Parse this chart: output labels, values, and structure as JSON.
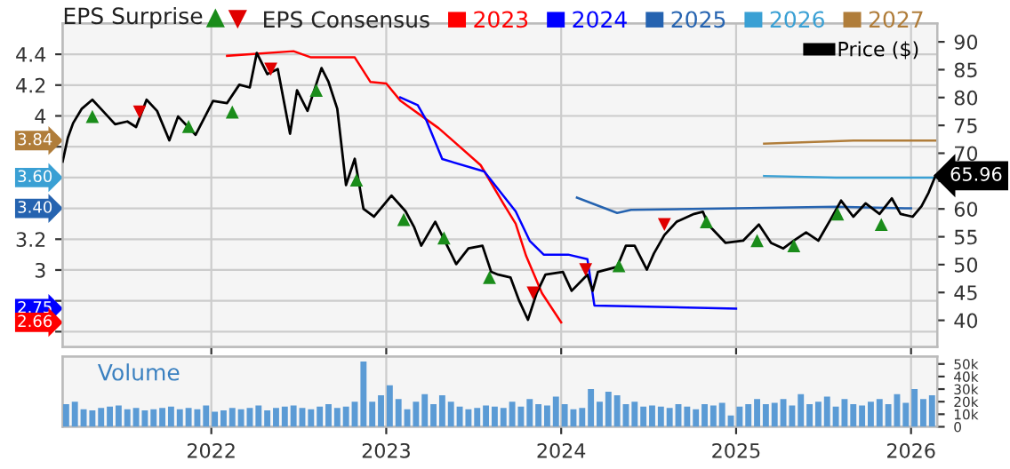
{
  "chart_data": [
    {
      "type": "line",
      "legend": "top",
      "legend_title": "EPS Consensus",
      "grid": true,
      "tick_labels": "y",
      "annotations": [
        "EPS Surprise",
        "3.84",
        "3.60",
        "3.40",
        "2.75",
        "2.66"
      ],
      "xlim": [
        2021.15,
        2026.15
      ],
      "xticks": [
        2022,
        2023,
        2024,
        2025,
        2026
      ],
      "ylim": [
        2.5,
        4.6
      ],
      "yticks": [
        {
          "value": 2.6,
          "label": null
        },
        {
          "value": 2.8,
          "label": null
        },
        3,
        3.2,
        {
          "value": 3.4,
          "label": null
        },
        {
          "value": 3.6,
          "label": null
        },
        {
          "value": 3.8,
          "label": null
        },
        4,
        4.2,
        4.4
      ],
      "y2lim": [
        35.2,
        93.3
      ],
      "y2ticks": [
        40,
        45,
        50,
        55,
        60,
        {
          "value": 65,
          "label": null
        },
        70,
        75,
        80,
        85,
        90
      ],
      "series": [
        {
          "name": "2023",
          "color": "#ff0000",
          "x": [
            2022.09,
            2022.47,
            2022.57,
            2022.82,
            2022.91,
            2023.0,
            2023.08,
            2023.3,
            2023.54,
            2023.67,
            2023.74,
            2023.8,
            2023.89,
            2024.0
          ],
          "values": [
            4.39,
            4.42,
            4.38,
            4.38,
            4.22,
            4.21,
            4.1,
            3.92,
            3.68,
            3.43,
            3.3,
            3.09,
            2.85,
            2.66
          ]
        },
        {
          "name": "2024",
          "color": "#0000ff",
          "x": [
            2023.08,
            2023.18,
            2023.23,
            2023.32,
            2023.56,
            2023.74,
            2023.82,
            2023.9,
            2024.04,
            2024.15,
            2024.19,
            2025.0
          ],
          "values": [
            4.12,
            4.07,
            3.97,
            3.72,
            3.64,
            3.38,
            3.19,
            3.1,
            3.1,
            3.07,
            2.77,
            2.75
          ]
        },
        {
          "name": "2025",
          "color": "#2563b0",
          "x": [
            2024.09,
            2024.32,
            2024.4,
            2025.0,
            2025.57,
            2026.0
          ],
          "values": [
            3.47,
            3.37,
            3.39,
            3.4,
            3.41,
            3.4
          ]
        },
        {
          "name": "2026",
          "color": "#3aa0d4",
          "x": [
            2025.16,
            2025.57,
            2026.14
          ],
          "values": [
            3.61,
            3.6,
            3.6
          ]
        },
        {
          "name": "2027",
          "color": "#b07d3a",
          "x": [
            2025.16,
            2025.67,
            2026.14
          ],
          "values": [
            3.82,
            3.84,
            3.84
          ]
        },
        {
          "name": "Price ($)",
          "color": "#000000",
          "axis": "y2",
          "x": [
            2021.15,
            2021.18,
            2021.21,
            2021.26,
            2021.32,
            2021.38,
            2021.45,
            2021.52,
            2021.57,
            2021.63,
            2021.69,
            2021.76,
            2021.81,
            2021.91,
            2022.01,
            2022.09,
            2022.16,
            2022.22,
            2022.26,
            2022.32,
            2022.38,
            2022.45,
            2022.49,
            2022.55,
            2022.63,
            2022.67,
            2022.72,
            2022.77,
            2022.82,
            2022.87,
            2022.93,
            2023.03,
            2023.11,
            2023.16,
            2023.2,
            2023.28,
            2023.4,
            2023.47,
            2023.55,
            2023.6,
            2023.64,
            2023.71,
            2023.76,
            2023.81,
            2023.86,
            2023.91,
            2024.01,
            2024.06,
            2024.15,
            2024.18,
            2024.21,
            2024.32,
            2024.37,
            2024.42,
            2024.49,
            2024.53,
            2024.59,
            2024.66,
            2024.76,
            2024.81,
            2024.84,
            2024.94,
            2025.04,
            2025.13,
            2025.2,
            2025.27,
            2025.33,
            2025.4,
            2025.47,
            2025.54,
            2025.6,
            2025.67,
            2025.74,
            2025.82,
            2025.89,
            2025.94,
            2026.01,
            2026.06,
            2026.1,
            2026.14
          ],
          "values": [
            68.5,
            72.8,
            75.4,
            78.0,
            79.6,
            77.6,
            75.2,
            75.7,
            74.7,
            79.6,
            77.6,
            72.3,
            76.6,
            73.3,
            79.4,
            79.0,
            82.3,
            81.8,
            88.0,
            84.2,
            85.1,
            73.5,
            81.3,
            77.6,
            85.3,
            82.8,
            78.0,
            64.3,
            69.0,
            60.0,
            58.6,
            62.4,
            59.6,
            56.7,
            53.4,
            57.7,
            50.1,
            52.9,
            53.4,
            48.7,
            48.2,
            47.7,
            43.5,
            40.1,
            44.9,
            48.2,
            48.7,
            45.3,
            48.2,
            45.3,
            48.7,
            49.6,
            53.4,
            53.4,
            49.1,
            52.0,
            55.3,
            57.7,
            59.1,
            59.5,
            57.2,
            53.9,
            54.3,
            57.2,
            53.9,
            52.9,
            54.3,
            55.8,
            54.3,
            58.1,
            61.5,
            58.6,
            61.0,
            59.1,
            61.9,
            59.1,
            58.6,
            60.5,
            62.9,
            65.96
          ],
          "value_labels": [
            null,
            null,
            null,
            null,
            null,
            null,
            null,
            null,
            null,
            null,
            null,
            null,
            null,
            null,
            null,
            null,
            null,
            null,
            null,
            null,
            null,
            null,
            null,
            null,
            null,
            null,
            null,
            null,
            null,
            null,
            null,
            null,
            null,
            null,
            null,
            null,
            null,
            null,
            null,
            null,
            null,
            null,
            null,
            null,
            null,
            null,
            null,
            null,
            null,
            null,
            null,
            null,
            null,
            null,
            null,
            null,
            null,
            null,
            null,
            null,
            null,
            null,
            null,
            null,
            null,
            null,
            null,
            null,
            null,
            null,
            null,
            null,
            null,
            null,
            null,
            null,
            null,
            null,
            null,
            "65.96"
          ]
        },
        {
          "type": "scatter",
          "axis": "y2",
          "marker": "triangle",
          "color": "#1a8c1a",
          "x": [
            2021.32,
            2021.87,
            2022.12,
            2022.6,
            2022.83,
            2023.1,
            2023.33,
            2023.59,
            2024.33,
            2024.83,
            2025.12,
            2025.33,
            2025.58,
            2025.83
          ],
          "values": [
            76.6,
            74.8,
            77.4,
            81.3,
            65.2,
            58.1,
            54.8,
            47.7,
            49.8,
            57.7,
            54.3,
            53.4,
            59.1,
            57.2
          ]
        },
        {
          "type": "scatter",
          "axis": "y2",
          "marker": "triangle-down",
          "color": "#e00000",
          "x": [
            2021.59,
            2022.34,
            2023.84,
            2024.14,
            2024.59
          ],
          "values": [
            77.4,
            85.1,
            44.9,
            49.1,
            57.2
          ]
        }
      ]
    },
    {
      "type": "bar",
      "grid": "x",
      "annotations": [
        "Volume"
      ],
      "xlim": [
        2021.15,
        2026.15
      ],
      "xticks": [
        2022,
        2023,
        2024,
        2025,
        2026
      ],
      "y2lim": [
        0,
        56000
      ],
      "y2ticks": [
        0,
        {
          "value": 10000,
          "label": "10k"
        },
        {
          "value": 20000,
          "label": "20k"
        },
        {
          "value": 30000,
          "label": "30k"
        },
        {
          "value": 40000,
          "label": "40k"
        },
        {
          "value": 50000,
          "label": "50k"
        }
      ],
      "series": [
        {
          "color": "#5b9bd5",
          "axis": "y2",
          "x": [
            2021.17,
            2021.22,
            2021.27,
            2021.32,
            2021.37,
            2021.42,
            2021.47,
            2021.52,
            2021.57,
            2021.62,
            2021.67,
            2021.72,
            2021.77,
            2021.82,
            2021.87,
            2021.92,
            2021.97,
            2022.02,
            2022.07,
            2022.12,
            2022.17,
            2022.22,
            2022.27,
            2022.32,
            2022.37,
            2022.42,
            2022.47,
            2022.52,
            2022.57,
            2022.62,
            2022.67,
            2022.72,
            2022.77,
            2022.82,
            2022.87,
            2022.92,
            2022.97,
            2023.02,
            2023.07,
            2023.12,
            2023.17,
            2023.22,
            2023.27,
            2023.32,
            2023.37,
            2023.42,
            2023.47,
            2023.52,
            2023.57,
            2023.62,
            2023.67,
            2023.72,
            2023.77,
            2023.82,
            2023.87,
            2023.92,
            2023.97,
            2024.02,
            2024.07,
            2024.12,
            2024.17,
            2024.22,
            2024.27,
            2024.32,
            2024.37,
            2024.42,
            2024.47,
            2024.52,
            2024.57,
            2024.62,
            2024.67,
            2024.72,
            2024.77,
            2024.82,
            2024.87,
            2024.92,
            2024.97,
            2025.02,
            2025.07,
            2025.12,
            2025.17,
            2025.22,
            2025.27,
            2025.32,
            2025.37,
            2025.42,
            2025.47,
            2025.52,
            2025.57,
            2025.62,
            2025.67,
            2025.72,
            2025.77,
            2025.82,
            2025.87,
            2025.92,
            2025.97,
            2026.02,
            2026.07,
            2026.12
          ],
          "values": [
            18000,
            20000,
            14000,
            13000,
            15000,
            16000,
            17000,
            14000,
            15000,
            13000,
            14000,
            15000,
            16000,
            14000,
            15000,
            14000,
            17000,
            12000,
            13000,
            15000,
            14000,
            15000,
            17000,
            13000,
            15000,
            16000,
            17000,
            15000,
            14000,
            16000,
            18000,
            15000,
            16000,
            20000,
            52000,
            20000,
            25000,
            33000,
            22000,
            14000,
            20000,
            26000,
            18000,
            25000,
            20000,
            16000,
            14000,
            15000,
            17000,
            16000,
            15000,
            20000,
            16000,
            22000,
            18000,
            17000,
            24000,
            18000,
            14000,
            15000,
            30000,
            20000,
            28000,
            25000,
            18000,
            20000,
            16000,
            17000,
            16000,
            15000,
            18000,
            16000,
            14000,
            18000,
            17000,
            19000,
            9000,
            16000,
            18000,
            22000,
            18000,
            19000,
            22000,
            17000,
            26000,
            18000,
            20000,
            24000,
            16000,
            22000,
            18000,
            17000,
            20000,
            22000,
            18000,
            26000,
            19000,
            30000,
            22000,
            25000
          ]
        }
      ]
    }
  ]
}
